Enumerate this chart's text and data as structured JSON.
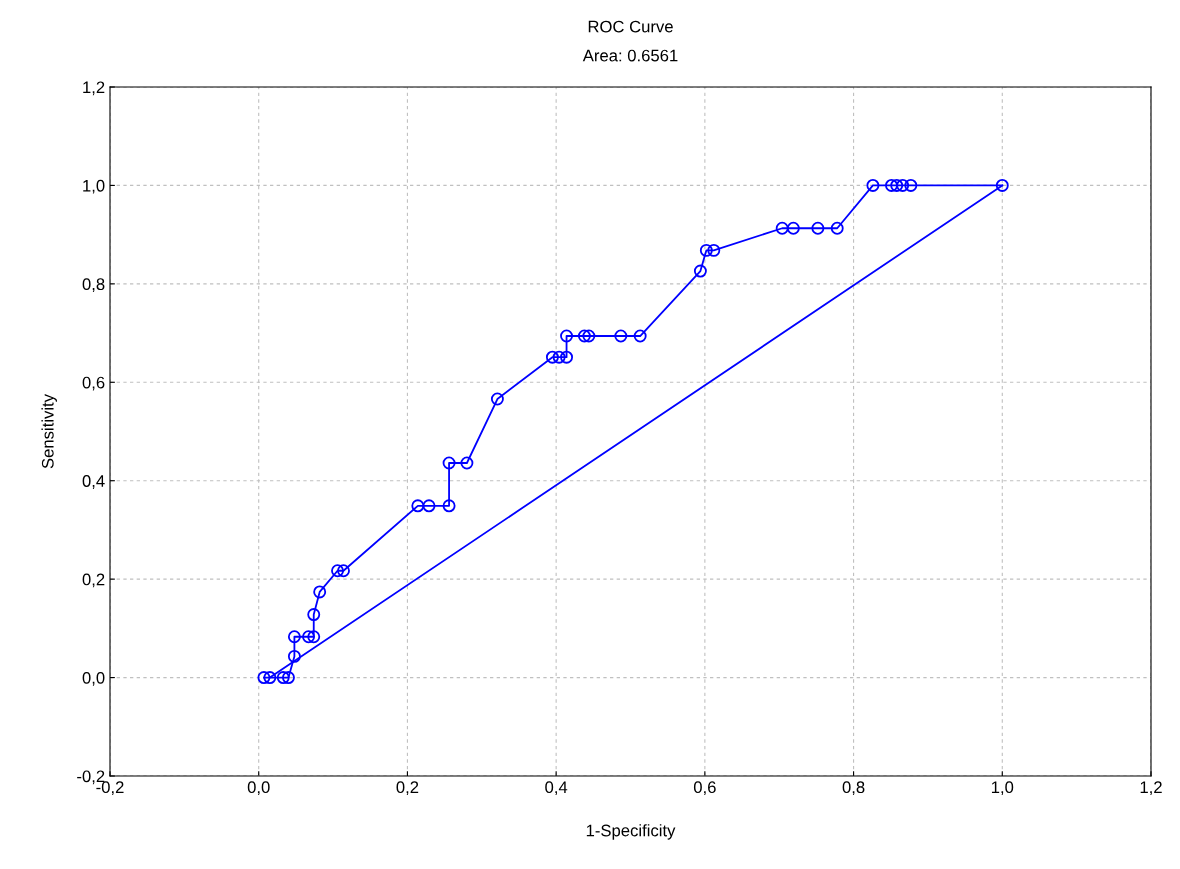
{
  "chart_data": {
    "type": "line",
    "title": "ROC Curve",
    "subtitle": "Area: 0.6561",
    "xlabel": "1-Specificity",
    "ylabel": "Sensitivity",
    "series": [
      {
        "color": "#0000ff",
        "marker": "circle",
        "x": [
          0.007,
          0.015,
          0.033,
          0.04,
          0.048,
          0.048,
          0.067,
          0.074,
          0.074,
          0.082,
          0.106,
          0.114,
          0.214,
          0.229,
          0.256,
          0.256,
          0.28,
          0.321,
          0.395,
          0.404,
          0.414,
          0.414,
          0.438,
          0.444,
          0.487,
          0.513,
          0.594,
          0.602,
          0.612,
          0.704,
          0.719,
          0.752,
          0.778,
          0.826,
          0.851,
          0.858,
          0.866,
          0.877,
          1.0
        ],
        "values": [
          0,
          0,
          0,
          0,
          0.043,
          0.083,
          0.083,
          0.083,
          0.128,
          0.174,
          0.217,
          0.217,
          0.349,
          0.349,
          0.349,
          0.436,
          0.436,
          0.566,
          0.651,
          0.651,
          0.651,
          0.694,
          0.694,
          0.694,
          0.694,
          0.694,
          0.826,
          0.868,
          0.868,
          0.913,
          0.913,
          0.913,
          0.913,
          1.0,
          1.0,
          1.0,
          1.0,
          1.0,
          1.0
        ]
      },
      {
        "color": "#0000ff",
        "marker": "none",
        "x": [
          0.015,
          1.0
        ],
        "values": [
          0,
          1.0
        ]
      }
    ],
    "xlim": [
      -0.2,
      1.2
    ],
    "ylim": [
      -0.2,
      1.2
    ],
    "xticks": [
      {
        "value": -0.2,
        "label": "-0,2"
      },
      {
        "value": 0,
        "label": "0,0"
      },
      {
        "value": 0.2,
        "label": "0,2"
      },
      {
        "value": 0.4,
        "label": "0,4"
      },
      {
        "value": 0.6,
        "label": "0,6"
      },
      {
        "value": 0.8,
        "label": "0,8"
      },
      {
        "value": 1.0,
        "label": "1,0"
      },
      {
        "value": 1.2,
        "label": "1,2"
      }
    ],
    "yticks": [
      {
        "value": -0.2,
        "label": "-0,2"
      },
      {
        "value": 0,
        "label": "0,0"
      },
      {
        "value": 0.2,
        "label": "0,2"
      },
      {
        "value": 0.4,
        "label": "0,4"
      },
      {
        "value": 0.6,
        "label": "0,6"
      },
      {
        "value": 0.8,
        "label": "0,8"
      },
      {
        "value": 1.0,
        "label": "1,0"
      },
      {
        "value": 1.2,
        "label": "1,2"
      }
    ],
    "grid": true,
    "line_style": "solid"
  }
}
